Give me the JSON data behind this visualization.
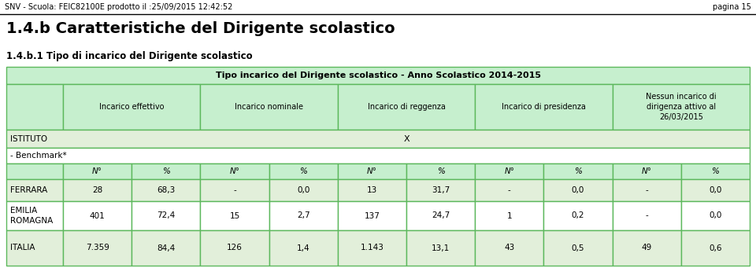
{
  "header_text": "SNV - Scuola: FEIC82100E prodotto il :25/09/2015 12:42:52",
  "page_text": "pagina 15",
  "title1": "1.4.b Caratteristiche del Dirigente scolastico",
  "title2": "1.4.b.1 Tipo di incarico del Dirigente scolastico",
  "table_header": "Tipo incarico del Dirigente scolastico - Anno Scolastico 2014-2015",
  "col_headers": [
    "Incarico effettivo",
    "Incarico nominale",
    "Incarico di reggenza",
    "Incarico di presidenza",
    "Nessun incarico di\ndirigenza attivo al\n26/03/2015"
  ],
  "col_sub": [
    "N°",
    "%",
    "N°",
    "%",
    "N°",
    "%",
    "N°",
    "%",
    "N°",
    "%"
  ],
  "data_rows": [
    [
      "FERRARA",
      "28",
      "68,3",
      "-",
      "0,0",
      "13",
      "31,7",
      "-",
      "0,0",
      "-",
      "0,0"
    ],
    [
      "EMILIA\nROMAGNA",
      "401",
      "72,4",
      "15",
      "2,7",
      "137",
      "24,7",
      "1",
      "0,2",
      "-",
      "0,0"
    ],
    [
      "ITALIA",
      "7.359",
      "84,4",
      "126",
      "1,4",
      "1.143",
      "13,1",
      "43",
      "0,5",
      "49",
      "0,6"
    ]
  ],
  "bg_header": "#c6efce",
  "bg_col_header": "#c6efce",
  "bg_istituto": "#e2efda",
  "bg_benchmark": "#ffffff",
  "bg_sub_header": "#c6efce",
  "bg_ferrara": "#e2efda",
  "bg_emilia": "#ffffff",
  "bg_italia": "#e2efda",
  "border_color": "#5cb85c",
  "text_color": "#000000"
}
